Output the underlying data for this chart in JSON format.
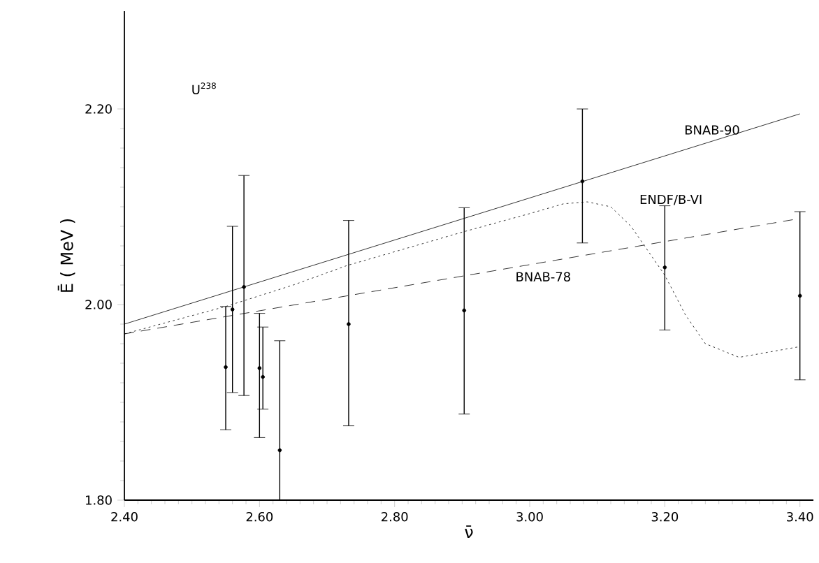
{
  "chart_data": {
    "type": "line",
    "xlabel": "ν̄",
    "ylabel": "Ē ( MeV )",
    "annotations": [
      "U$^{238}$"
    ],
    "xlim": [
      2.4,
      3.42
    ],
    "ylim": [
      1.8,
      2.3
    ],
    "xticks": [
      {
        "value": 2.4,
        "label": "2.40"
      },
      {
        "value": 2.6,
        "label": "2.60"
      },
      {
        "value": 2.8,
        "label": "2.80"
      },
      {
        "value": 3.0,
        "label": "3.00"
      },
      {
        "value": 3.2,
        "label": "3.20"
      },
      {
        "value": 3.4,
        "label": "3.40"
      }
    ],
    "yticks": [
      {
        "value": 1.8,
        "label": "1.80"
      },
      {
        "value": 2.0,
        "label": "2.00"
      },
      {
        "value": 2.2,
        "label": "2.20"
      }
    ],
    "grid": false,
    "series": [
      {
        "name": "BNAB-90",
        "line_style": "solid",
        "marker": "none",
        "color": "#000000",
        "x": [
          2.4,
          3.4
        ],
        "values": [
          1.98,
          2.195
        ]
      },
      {
        "name": "ENDF/B-VI",
        "line_style": "dotted",
        "marker": "none",
        "color": "#000000",
        "x": [
          2.4,
          2.55,
          2.65,
          2.73,
          2.9,
          3.0,
          3.05,
          3.085,
          3.12,
          3.15,
          3.18,
          3.2,
          3.23,
          3.26,
          3.31,
          3.4
        ],
        "values": [
          1.97,
          1.998,
          2.02,
          2.04,
          2.074,
          2.093,
          2.103,
          2.105,
          2.1,
          2.08,
          2.05,
          2.03,
          1.99,
          1.96,
          1.946,
          1.957
        ]
      },
      {
        "name": "BNAB-78",
        "line_style": "dashed",
        "marker": "none",
        "color": "#000000",
        "x": [
          2.4,
          3.4
        ],
        "values": [
          1.97,
          2.088
        ]
      },
      {
        "type": "scatter",
        "marker": "circle",
        "color": "#000000",
        "x": [
          2.55,
          2.56,
          2.577,
          2.6,
          2.605,
          2.63,
          2.732,
          2.903,
          3.078,
          3.2,
          3.4
        ],
        "values": [
          1.936,
          1.995,
          2.018,
          1.935,
          1.926,
          1.851,
          1.98,
          1.994,
          2.126,
          2.038,
          2.009
        ],
        "errors": [
          [
            1.872,
            1.998
          ],
          [
            1.91,
            2.08
          ],
          [
            1.907,
            2.132
          ],
          [
            1.864,
            1.991
          ],
          [
            1.893,
            1.977
          ],
          [
            1.8,
            1.963
          ],
          [
            1.876,
            2.086
          ],
          [
            1.888,
            2.099
          ],
          [
            2.063,
            2.2
          ],
          [
            1.974,
            2.101
          ],
          [
            1.923,
            2.095
          ]
        ]
      }
    ]
  }
}
